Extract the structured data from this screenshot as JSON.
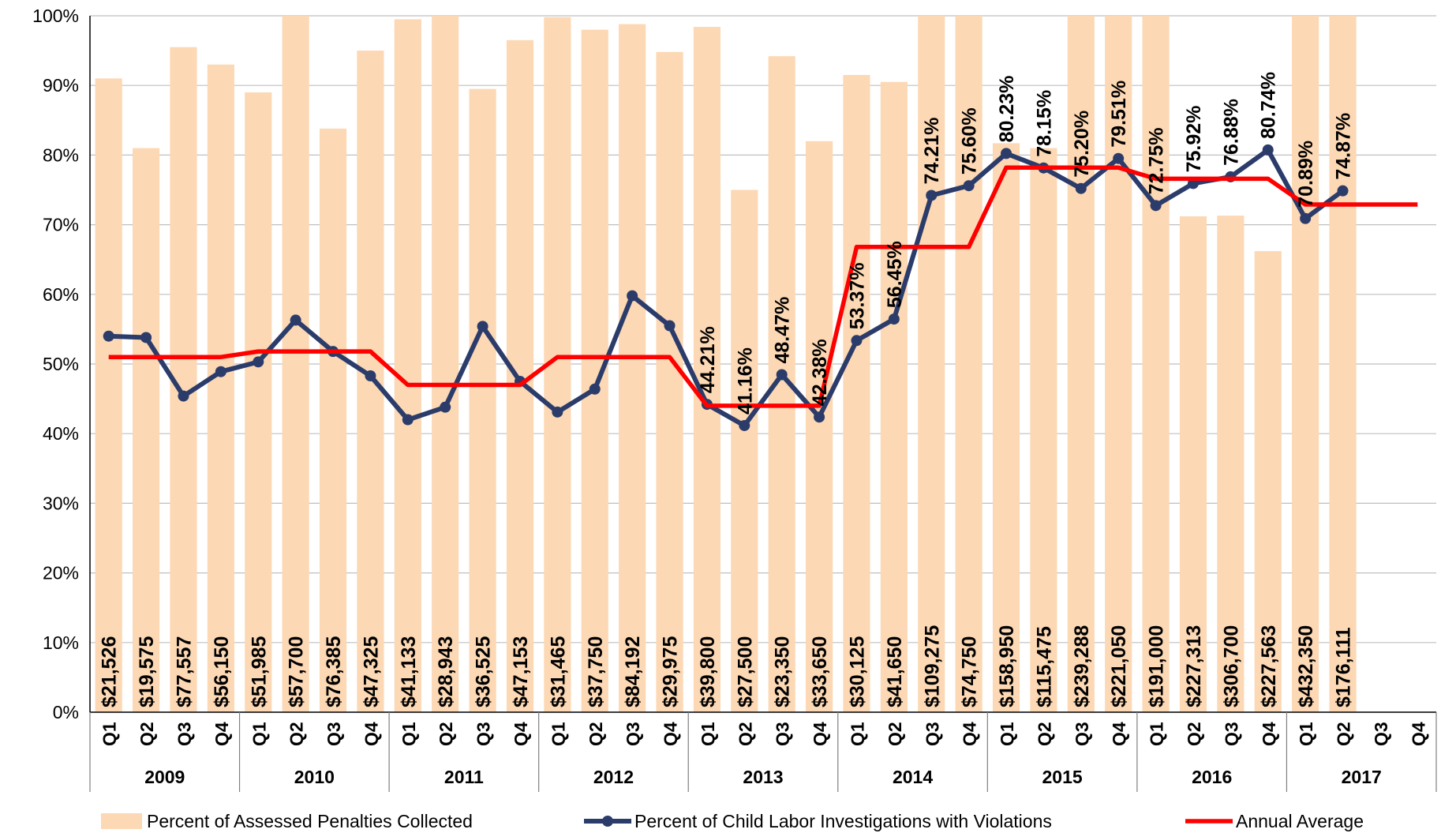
{
  "chart_data": {
    "type": "combo",
    "categories": [
      "Q1",
      "Q2",
      "Q3",
      "Q4",
      "Q1",
      "Q2",
      "Q3",
      "Q4",
      "Q1",
      "Q2",
      "Q3",
      "Q4",
      "Q1",
      "Q2",
      "Q3",
      "Q4",
      "Q1",
      "Q2",
      "Q3",
      "Q4",
      "Q1",
      "Q2",
      "Q3",
      "Q4",
      "Q1",
      "Q2",
      "Q3",
      "Q4",
      "Q1",
      "Q2",
      "Q3",
      "Q4",
      "Q1",
      "Q2",
      "Q3",
      "Q4"
    ],
    "years": [
      "2009",
      "2010",
      "2011",
      "2012",
      "2013",
      "2014",
      "2015",
      "2016",
      "2017"
    ],
    "amounts": [
      "$21,526",
      "$19,575",
      "$77,557",
      "$56,150",
      "$51,985",
      "$57,700",
      "$76,385",
      "$47,325",
      "$41,133",
      "$28,943",
      "$36,525",
      "$47,153",
      "$31,465",
      "$37,750",
      "$84,192",
      "$29,975",
      "$39,800",
      "$27,500",
      "$23,350",
      "$33,650",
      "$30,125",
      "$41,650",
      "$109,275",
      "$74,750",
      "$158,950",
      "$115,475",
      "$239,288",
      "$221,050",
      "$191,000",
      "$227,313",
      "$306,700",
      "$227,563",
      "$432,350",
      "$176,111",
      null,
      null
    ],
    "series": [
      {
        "name": "Percent of Assessed Penalties Collected",
        "type": "bar",
        "color": "#fcd8b4",
        "values": [
          91,
          81,
          95.5,
          93,
          89,
          100,
          83.8,
          95,
          99.5,
          100,
          89.5,
          96.5,
          99.8,
          98,
          98.8,
          94.8,
          98.4,
          75,
          94.2,
          82,
          91.5,
          90.5,
          100,
          100,
          81.7,
          81,
          100,
          100,
          100,
          71.2,
          71.3,
          66.2,
          100,
          100,
          null,
          null
        ]
      },
      {
        "name": "Percent of Child Labor Investigations with Violations",
        "type": "line",
        "color": "#2b3c6b",
        "marker": true,
        "values": [
          54,
          53.8,
          45.4,
          48.9,
          50.3,
          56.3,
          51.8,
          48.3,
          42,
          43.8,
          55.4,
          47.5,
          43.1,
          46.4,
          59.8,
          55.5,
          44.21,
          41.16,
          48.47,
          42.38,
          53.37,
          56.45,
          74.21,
          75.6,
          80.23,
          78.15,
          75.2,
          79.51,
          72.75,
          75.92,
          76.88,
          80.74,
          70.89,
          74.87,
          null,
          null
        ],
        "value_labels": [
          null,
          null,
          null,
          null,
          null,
          null,
          null,
          null,
          null,
          null,
          null,
          null,
          null,
          null,
          null,
          null,
          "44.21%",
          "41.16%",
          "48.47%",
          "42.38%",
          "53.37%",
          "56.45%",
          "74.21%",
          "75.60%",
          "80.23%",
          "78.15%",
          "75.20%",
          "79.51%",
          "72.75%",
          "75.92%",
          "76.88%",
          "80.74%",
          "70.89%",
          "74.87%",
          null,
          null
        ]
      },
      {
        "name": "Annual Average",
        "type": "line",
        "color": "#ff0000",
        "marker": false,
        "values": [
          51,
          51,
          51,
          51,
          51.8,
          51.8,
          51.8,
          51.8,
          47,
          47,
          47,
          47,
          51,
          51,
          51,
          51,
          44,
          44,
          44,
          44,
          66.8,
          66.8,
          66.8,
          66.8,
          78.2,
          78.2,
          78.2,
          78.2,
          76.6,
          76.6,
          76.6,
          76.6,
          72.9,
          72.9,
          72.9,
          72.9
        ]
      }
    ],
    "ylim": [
      0,
      100
    ],
    "yticks": [
      {
        "value": 0,
        "label": "0%"
      },
      {
        "value": 10,
        "label": "10%"
      },
      {
        "value": 20,
        "label": "20%"
      },
      {
        "value": 30,
        "label": "30%"
      },
      {
        "value": 40,
        "label": "40%"
      },
      {
        "value": 50,
        "label": "50%"
      },
      {
        "value": 60,
        "label": "60%"
      },
      {
        "value": 70,
        "label": "70%"
      },
      {
        "value": 80,
        "label": "80%"
      },
      {
        "value": 90,
        "label": "90%"
      },
      {
        "value": 100,
        "label": "100%"
      }
    ],
    "grid": true,
    "legend": "bottom"
  }
}
